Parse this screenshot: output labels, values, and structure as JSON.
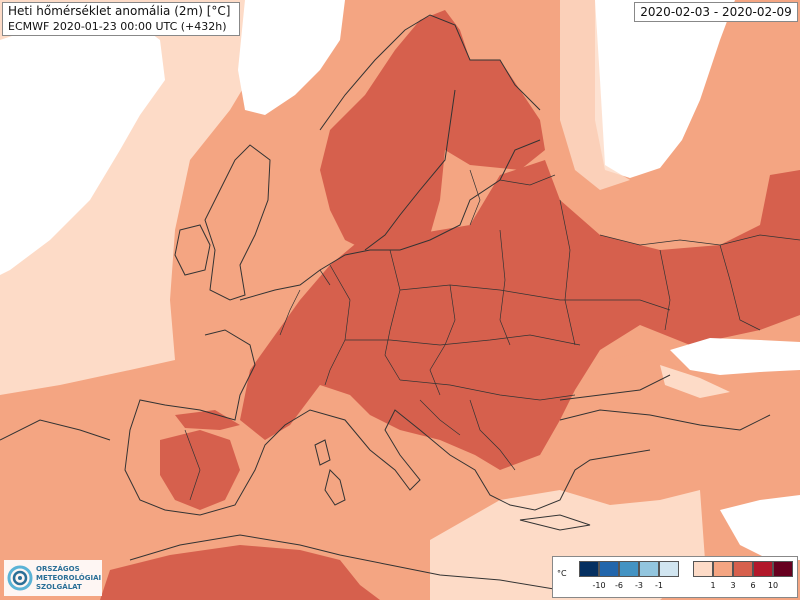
{
  "header": {
    "title": "Heti hőmérséklet anomália (2m) [°C]",
    "subtitle": "ECMWF 2020-01-23 00:00 UTC (+432h)",
    "date_range": "2020-02-03 - 2020-02-09"
  },
  "logo": {
    "line1": "ORSZÁGOS",
    "line2": "METEOROLÓGIAI",
    "line3": "SZOLGÁLAT"
  },
  "legend": {
    "unit": "°C",
    "cold_colors": [
      "#053061",
      "#2166ac",
      "#4393c3",
      "#92c5de",
      "#d1e5f0"
    ],
    "warm_colors": [
      "#fddbc7",
      "#f4a582",
      "#d6604d",
      "#b2182b",
      "#67001f"
    ],
    "cold_ticks": [
      "-10",
      "-6",
      "-3",
      "-1"
    ],
    "warm_ticks": [
      "1",
      "3",
      "6",
      "10"
    ]
  },
  "colors": {
    "near_zero": "#ffffff",
    "light_warm": "#fddbc7",
    "warm": "#f4a582",
    "strong_warm": "#d6604d",
    "land_border": "#333333"
  }
}
